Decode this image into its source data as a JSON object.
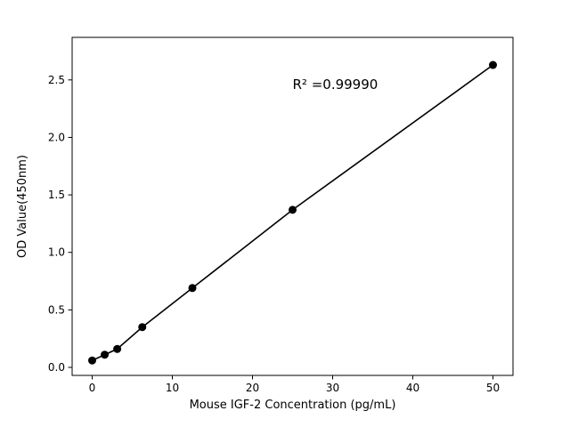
{
  "figure": {
    "background": "#ffffff"
  },
  "chart_data": {
    "type": "scatter",
    "x": [
      0,
      1.5625,
      3.125,
      6.25,
      12.5,
      25,
      50
    ],
    "y": [
      0.06,
      0.11,
      0.16,
      0.35,
      0.69,
      1.37,
      2.63
    ],
    "line_through_points": true,
    "title": "",
    "xlabel": "Mouse IGF-2 Concentration (pg/mL)",
    "ylabel": "OD Value(450nm)",
    "xlim": [
      -2.5,
      52.5
    ],
    "ylim": [
      -0.07,
      2.87
    ],
    "xticks": [
      0,
      10,
      20,
      30,
      40,
      50
    ],
    "yticks": [
      0.0,
      0.5,
      1.0,
      1.5,
      2.0,
      2.5
    ],
    "xtick_labels": [
      "0",
      "10",
      "20",
      "30",
      "40",
      "50"
    ],
    "ytick_labels": [
      "0.0",
      "0.5",
      "1.0",
      "1.5",
      "2.0",
      "2.5"
    ],
    "annotation": {
      "text": "R² =0.99990",
      "x": 25,
      "y": 2.42
    },
    "color": "#000000",
    "marker_radius": 4.5,
    "line_width": 1.6,
    "grid": false,
    "legend_position": "none"
  }
}
